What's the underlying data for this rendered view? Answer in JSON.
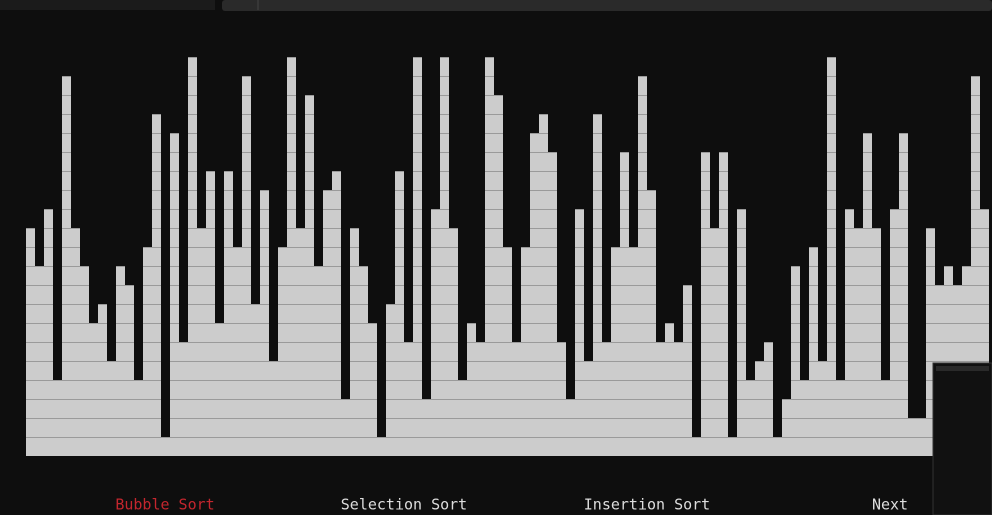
{
  "visualizer": {
    "bar_color": "#cccccc",
    "values": [
      12,
      10,
      13,
      4,
      20,
      12,
      10,
      7,
      8,
      5,
      10,
      9,
      4,
      11,
      18,
      1,
      17,
      6,
      21,
      12,
      15,
      7,
      15,
      11,
      20,
      8,
      14,
      5,
      11,
      21,
      12,
      19,
      10,
      14,
      15,
      3,
      12,
      10,
      7,
      1,
      8,
      15,
      6,
      21,
      3,
      13,
      21,
      12,
      4,
      7,
      6,
      21,
      19,
      11,
      6,
      11,
      17,
      18,
      16,
      6,
      3,
      13,
      5,
      18,
      6,
      11,
      16,
      11,
      20,
      14,
      6,
      7,
      6,
      9,
      1,
      16,
      12,
      16,
      1,
      13,
      4,
      5,
      6,
      1,
      3,
      10,
      4,
      11,
      5,
      21,
      4,
      13,
      12,
      17,
      12,
      4,
      13,
      17,
      2,
      2,
      12,
      9,
      10,
      9,
      10,
      20,
      13
    ]
  },
  "buttons": [
    {
      "label": "Bubble Sort",
      "color": "#c4262e"
    },
    {
      "label": "Selection Sort",
      "color": "#dddddd"
    },
    {
      "label": "Insertion Sort",
      "color": "#dddddd"
    },
    {
      "label": "Next",
      "color": "#dddddd"
    }
  ]
}
